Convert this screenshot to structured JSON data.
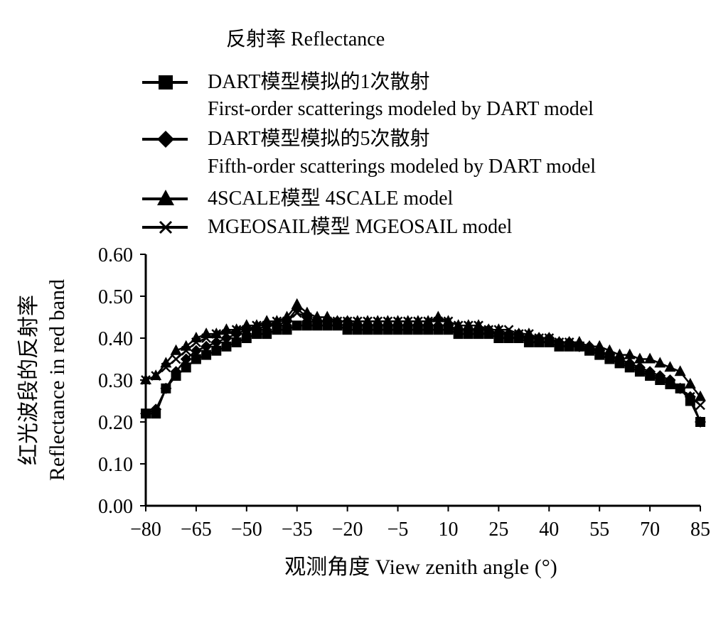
{
  "chart_data": {
    "type": "line",
    "title": "反射率 Reflectance",
    "xlabel": "观测角度 View zenith angle (°)",
    "ylabel_cn": "红光波段的反射率",
    "ylabel_en": "Reflectance in red band",
    "xlim": [
      -80,
      85
    ],
    "ylim": [
      0,
      0.6
    ],
    "x_ticks": [
      "−80",
      "−65",
      "−50",
      "−35",
      "−20",
      "−5",
      "10",
      "25",
      "40",
      "55",
      "70",
      "85"
    ],
    "y_ticks": [
      "0.00",
      "0.10",
      "0.20",
      "0.30",
      "0.40",
      "0.50",
      "0.60"
    ],
    "grid": false,
    "legend_position": "top",
    "x": [
      -80,
      -77,
      -74,
      -71,
      -68,
      -65,
      -62,
      -59,
      -56,
      -53,
      -50,
      -47,
      -44,
      -41,
      -38,
      -35,
      -32,
      -29,
      -26,
      -23,
      -20,
      -17,
      -14,
      -11,
      -8,
      -5,
      -2,
      1,
      4,
      7,
      10,
      13,
      16,
      19,
      22,
      25,
      28,
      31,
      34,
      37,
      40,
      43,
      46,
      49,
      52,
      55,
      58,
      61,
      64,
      67,
      70,
      73,
      76,
      79,
      82,
      85
    ],
    "series": [
      {
        "name": "DART模型模拟的1次散射",
        "name_en": "First-order scatterings modeled by DART model",
        "marker": "square",
        "values": [
          0.22,
          0.22,
          0.28,
          0.31,
          0.33,
          0.35,
          0.36,
          0.37,
          0.38,
          0.39,
          0.4,
          0.41,
          0.41,
          0.42,
          0.42,
          0.43,
          0.43,
          0.43,
          0.43,
          0.43,
          0.42,
          0.42,
          0.42,
          0.42,
          0.42,
          0.42,
          0.42,
          0.42,
          0.42,
          0.42,
          0.42,
          0.41,
          0.41,
          0.41,
          0.41,
          0.4,
          0.4,
          0.4,
          0.39,
          0.39,
          0.39,
          0.38,
          0.38,
          0.38,
          0.37,
          0.36,
          0.35,
          0.34,
          0.33,
          0.32,
          0.31,
          0.3,
          0.29,
          0.28,
          0.25,
          0.2
        ]
      },
      {
        "name": "DART模型模拟的5次散射",
        "name_en": "Fifth-order scatterings modeled by DART model",
        "marker": "diamond",
        "values": [
          0.22,
          0.23,
          0.28,
          0.32,
          0.35,
          0.37,
          0.38,
          0.39,
          0.4,
          0.41,
          0.42,
          0.42,
          0.43,
          0.43,
          0.44,
          0.47,
          0.45,
          0.44,
          0.44,
          0.44,
          0.44,
          0.43,
          0.43,
          0.43,
          0.43,
          0.43,
          0.43,
          0.43,
          0.43,
          0.43,
          0.43,
          0.42,
          0.42,
          0.42,
          0.42,
          0.41,
          0.41,
          0.41,
          0.4,
          0.4,
          0.4,
          0.39,
          0.39,
          0.38,
          0.38,
          0.37,
          0.36,
          0.35,
          0.34,
          0.33,
          0.32,
          0.31,
          0.3,
          0.28,
          0.26,
          0.2
        ]
      },
      {
        "name": "4SCALE模型 4SCALE model",
        "marker": "triangle",
        "values": [
          0.3,
          0.31,
          0.34,
          0.37,
          0.38,
          0.4,
          0.41,
          0.41,
          0.42,
          0.42,
          0.43,
          0.43,
          0.44,
          0.44,
          0.45,
          0.48,
          0.46,
          0.45,
          0.45,
          0.44,
          0.44,
          0.44,
          0.44,
          0.44,
          0.44,
          0.44,
          0.44,
          0.44,
          0.44,
          0.45,
          0.44,
          0.43,
          0.43,
          0.43,
          0.42,
          0.42,
          0.41,
          0.41,
          0.41,
          0.4,
          0.4,
          0.39,
          0.39,
          0.39,
          0.38,
          0.38,
          0.37,
          0.36,
          0.36,
          0.35,
          0.35,
          0.34,
          0.33,
          0.32,
          0.29,
          0.26
        ]
      },
      {
        "name": "MGEOSAIL模型 MGEOSAIL model",
        "marker": "x",
        "values": [
          0.3,
          0.31,
          0.33,
          0.35,
          0.37,
          0.39,
          0.4,
          0.41,
          0.41,
          0.42,
          0.42,
          0.43,
          0.43,
          0.44,
          0.44,
          0.46,
          0.45,
          0.44,
          0.44,
          0.44,
          0.44,
          0.44,
          0.44,
          0.44,
          0.44,
          0.44,
          0.44,
          0.44,
          0.44,
          0.44,
          0.44,
          0.43,
          0.43,
          0.43,
          0.42,
          0.42,
          0.42,
          0.41,
          0.41,
          0.4,
          0.4,
          0.39,
          0.39,
          0.38,
          0.37,
          0.36,
          0.35,
          0.34,
          0.33,
          0.32,
          0.31,
          0.3,
          0.29,
          0.28,
          0.26,
          0.24
        ]
      }
    ]
  }
}
